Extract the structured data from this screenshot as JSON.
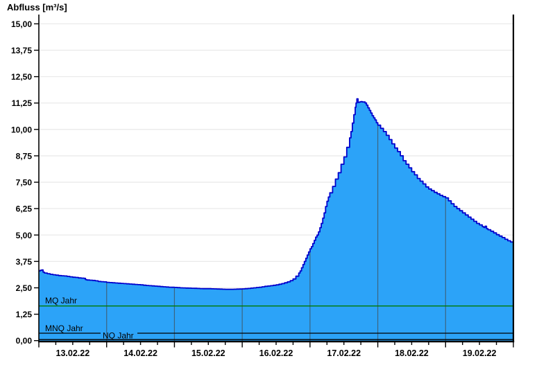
{
  "title": "Abfluss [m³/s]",
  "chart_data": {
    "type": "area",
    "title": "Abfluss [m³/s]",
    "ylabel": "Abfluss [m³/s]",
    "xlabel": "",
    "x_unit": "hours since 13.02.22 00:00",
    "ylim": [
      0,
      15
    ],
    "y_tick_step": 1.25,
    "y_tick_labels": [
      "0,00",
      "1,25",
      "2,50",
      "3,75",
      "5,00",
      "6,25",
      "7,50",
      "8,75",
      "10,00",
      "11,25",
      "12,50",
      "13,75",
      "15,00"
    ],
    "x_day_labels": [
      "13.02.22",
      "14.02.22",
      "15.02.22",
      "16.02.22",
      "17.02.22",
      "18.02.22",
      "19.02.22"
    ],
    "x_major_tick_hours": 24,
    "x_minor_tick_hours": 6,
    "grid": "horizontal-only",
    "legend": "none",
    "peak": {
      "time_hours": 112.6,
      "value": 11.45
    },
    "series": [
      {
        "name": "Abfluss",
        "points": [
          [
            0,
            3.3
          ],
          [
            0.5,
            3.33
          ],
          [
            1,
            3.35
          ],
          [
            1.5,
            3.24
          ],
          [
            2,
            3.2
          ],
          [
            3,
            3.17
          ],
          [
            4,
            3.14
          ],
          [
            5,
            3.12
          ],
          [
            6,
            3.1
          ],
          [
            7,
            3.08
          ],
          [
            8,
            3.07
          ],
          [
            9,
            3.06
          ],
          [
            10,
            3.04
          ],
          [
            11,
            3.02
          ],
          [
            12,
            3.0
          ],
          [
            13,
            2.99
          ],
          [
            14,
            2.97
          ],
          [
            15,
            2.96
          ],
          [
            16,
            2.95
          ],
          [
            16.5,
            2.89
          ],
          [
            17,
            2.87
          ],
          [
            18,
            2.86
          ],
          [
            19,
            2.85
          ],
          [
            20,
            2.83
          ],
          [
            21,
            2.8
          ],
          [
            22,
            2.79
          ],
          [
            23,
            2.78
          ],
          [
            24,
            2.76
          ],
          [
            26,
            2.74
          ],
          [
            28,
            2.72
          ],
          [
            30,
            2.7
          ],
          [
            32,
            2.68
          ],
          [
            34,
            2.66
          ],
          [
            36,
            2.64
          ],
          [
            38,
            2.61
          ],
          [
            40,
            2.59
          ],
          [
            42,
            2.57
          ],
          [
            44,
            2.55
          ],
          [
            46,
            2.53
          ],
          [
            48,
            2.52
          ],
          [
            50,
            2.5
          ],
          [
            52,
            2.49
          ],
          [
            54,
            2.48
          ],
          [
            56,
            2.47
          ],
          [
            58,
            2.46
          ],
          [
            60,
            2.46
          ],
          [
            62,
            2.45
          ],
          [
            64,
            2.44
          ],
          [
            66,
            2.43
          ],
          [
            68,
            2.43
          ],
          [
            70,
            2.44
          ],
          [
            72,
            2.45
          ],
          [
            74,
            2.47
          ],
          [
            76,
            2.5
          ],
          [
            78,
            2.53
          ],
          [
            80,
            2.57
          ],
          [
            82,
            2.6
          ],
          [
            84,
            2.64
          ],
          [
            85,
            2.67
          ],
          [
            86,
            2.7
          ],
          [
            87,
            2.74
          ],
          [
            88,
            2.78
          ],
          [
            89,
            2.84
          ],
          [
            90,
            2.92
          ],
          [
            91,
            3.05
          ],
          [
            92,
            3.2
          ],
          [
            92.5,
            3.3
          ],
          [
            93,
            3.45
          ],
          [
            93.5,
            3.6
          ],
          [
            94,
            3.75
          ],
          [
            94.5,
            3.9
          ],
          [
            95,
            4.05
          ],
          [
            95.5,
            4.2
          ],
          [
            96,
            4.35
          ],
          [
            96.5,
            4.45
          ],
          [
            97,
            4.6
          ],
          [
            97.5,
            4.75
          ],
          [
            98,
            4.9
          ],
          [
            98.5,
            5.0
          ],
          [
            99,
            5.15
          ],
          [
            99.5,
            5.35
          ],
          [
            100,
            5.55
          ],
          [
            100.5,
            5.8
          ],
          [
            101,
            6.05
          ],
          [
            101.5,
            6.35
          ],
          [
            102,
            6.6
          ],
          [
            102.5,
            6.8
          ],
          [
            103,
            7.0
          ],
          [
            104,
            7.3
          ],
          [
            105,
            7.65
          ],
          [
            106,
            7.95
          ],
          [
            107,
            8.35
          ],
          [
            108,
            8.7
          ],
          [
            109,
            9.15
          ],
          [
            110,
            9.6
          ],
          [
            110.5,
            9.9
          ],
          [
            111,
            10.3
          ],
          [
            111.5,
            10.7
          ],
          [
            112,
            11.05
          ],
          [
            112.3,
            11.25
          ],
          [
            112.6,
            11.45
          ],
          [
            113,
            11.28
          ],
          [
            113.5,
            11.3
          ],
          [
            114,
            11.32
          ],
          [
            114.5,
            11.3
          ],
          [
            115,
            11.3
          ],
          [
            115.5,
            11.25
          ],
          [
            116,
            11.15
          ],
          [
            116.5,
            11.02
          ],
          [
            117,
            10.9
          ],
          [
            117.5,
            10.78
          ],
          [
            118,
            10.65
          ],
          [
            118.5,
            10.55
          ],
          [
            119,
            10.45
          ],
          [
            119.5,
            10.32
          ],
          [
            120,
            10.2
          ],
          [
            121,
            10.05
          ],
          [
            122,
            9.9
          ],
          [
            123,
            9.72
          ],
          [
            124,
            9.52
          ],
          [
            125,
            9.32
          ],
          [
            126,
            9.12
          ],
          [
            127,
            8.95
          ],
          [
            128,
            8.75
          ],
          [
            129,
            8.52
          ],
          [
            130,
            8.35
          ],
          [
            131,
            8.18
          ],
          [
            132,
            8.0
          ],
          [
            133,
            7.85
          ],
          [
            134,
            7.68
          ],
          [
            135,
            7.55
          ],
          [
            136,
            7.42
          ],
          [
            137,
            7.28
          ],
          [
            138,
            7.18
          ],
          [
            139,
            7.1
          ],
          [
            140,
            7.02
          ],
          [
            141,
            6.95
          ],
          [
            142,
            6.88
          ],
          [
            143,
            6.82
          ],
          [
            144,
            6.76
          ],
          [
            145,
            6.62
          ],
          [
            146,
            6.48
          ],
          [
            147,
            6.35
          ],
          [
            148,
            6.25
          ],
          [
            149,
            6.15
          ],
          [
            150,
            6.05
          ],
          [
            151,
            5.95
          ],
          [
            152,
            5.85
          ],
          [
            153,
            5.75
          ],
          [
            154,
            5.65
          ],
          [
            155,
            5.55
          ],
          [
            156,
            5.48
          ],
          [
            157,
            5.4
          ],
          [
            157.5,
            5.36
          ],
          [
            158,
            5.42
          ],
          [
            158.5,
            5.3
          ],
          [
            159,
            5.25
          ],
          [
            160,
            5.18
          ],
          [
            161,
            5.1
          ],
          [
            162,
            5.02
          ],
          [
            163,
            4.95
          ],
          [
            164,
            4.88
          ],
          [
            165,
            4.8
          ],
          [
            166,
            4.73
          ],
          [
            167,
            4.67
          ],
          [
            168,
            4.62
          ]
        ]
      }
    ],
    "reference_lines": [
      {
        "label": "MQ Jahr",
        "value": 1.64,
        "color": "#007a00"
      },
      {
        "label": "MNQ Jahr",
        "value": 0.35,
        "color": "#000000"
      },
      {
        "label": "NQ Jahr",
        "value": 0.05,
        "color": "#000000"
      }
    ],
    "colors": {
      "area_fill": "#2ca3f8",
      "area_outline": "#0000cc",
      "grid_line": "#eaeaea",
      "day_boundary_line": "#3c6480",
      "axis": "#000000",
      "text": "#000000",
      "background": "#ffffff"
    }
  }
}
